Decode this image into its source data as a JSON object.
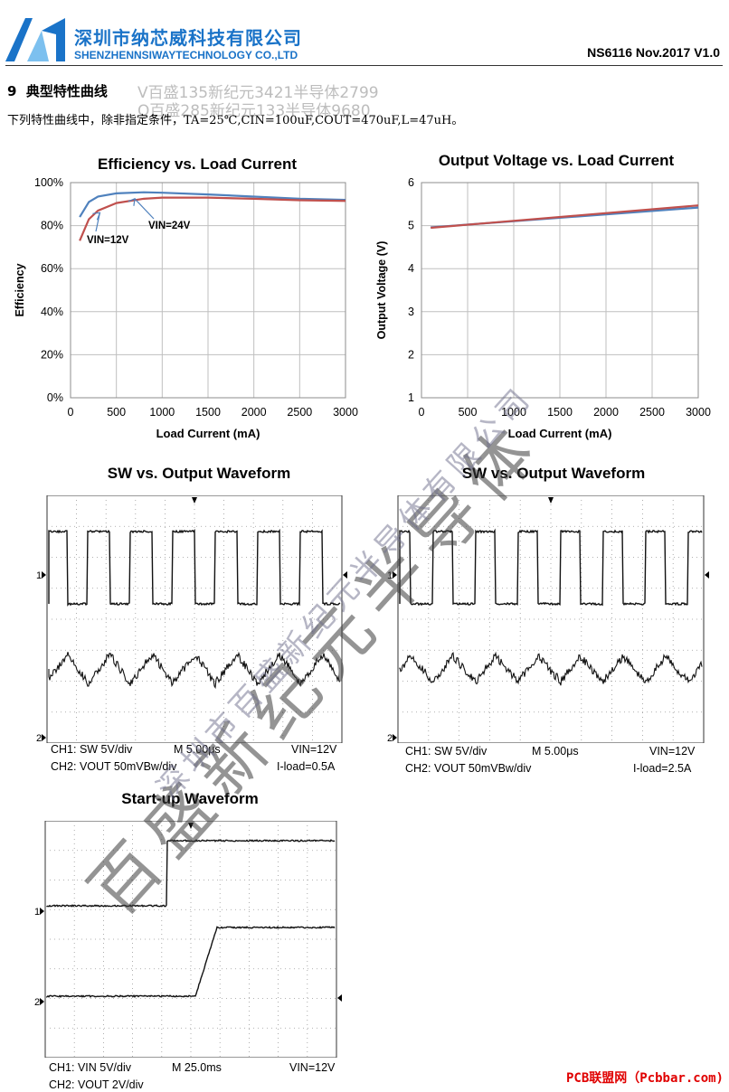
{
  "header": {
    "company_cn": "深圳市纳芯威科技有限公司",
    "company_en": "SHENZHENNSIWAYTECHNOLOGY CO.,LTD",
    "doc_info": "NS6116 Nov.2017 V1.0"
  },
  "section": {
    "number": "9",
    "title": "典型特性曲线",
    "intro": "下列特性曲线中，除非指定条件，TA=25℃,CIN=100uF,COUT=470uF,L=47uH。"
  },
  "watermark": {
    "line1": "V百盛135新纪元3421半导体2799",
    "line2": "Q百盛285新纪元133半导体9680",
    "diagonal_big": "百盛新纪元半导体",
    "diagonal_small": "深圳市百盛新纪元半导体有限公司"
  },
  "chart_data": [
    {
      "type": "line",
      "title": "Efficiency vs. Load Current",
      "xlabel": "Load Current (mA)",
      "ylabel": "Efficiency",
      "xlim": [
        0,
        3000
      ],
      "ylim": [
        0,
        100
      ],
      "xticks": [
        "0",
        "500",
        "1000",
        "1500",
        "2000",
        "2500",
        "3000"
      ],
      "yticks": [
        "0%",
        "20%",
        "40%",
        "60%",
        "80%",
        "100%"
      ],
      "grid": true,
      "series": [
        {
          "name": "VIN=12V",
          "color": "#4f81bd",
          "x": [
            100,
            200,
            300,
            500,
            800,
            1000,
            1500,
            2000,
            2500,
            3000
          ],
          "y": [
            84,
            91,
            93.5,
            95,
            95.5,
            95.3,
            94.5,
            93.5,
            92.5,
            92
          ]
        },
        {
          "name": "VIN=24V",
          "color": "#c0504d",
          "x": [
            100,
            200,
            300,
            500,
            800,
            1000,
            1500,
            2000,
            2500,
            3000
          ],
          "y": [
            73,
            83,
            87,
            90.5,
            92.5,
            93,
            93,
            92.5,
            91.8,
            91.5
          ]
        }
      ],
      "annotations": [
        "VIN=12V",
        "VIN=24V"
      ]
    },
    {
      "type": "line",
      "title": "Output Voltage vs. Load Current",
      "xlabel": "Load Current (mA)",
      "ylabel": "Output Voltage (V)",
      "xlim": [
        0,
        3000
      ],
      "ylim": [
        1,
        6
      ],
      "xticks": [
        "0",
        "500",
        "1000",
        "1500",
        "2000",
        "2500",
        "3000"
      ],
      "yticks": [
        "1",
        "2",
        "3",
        "4",
        "5",
        "6"
      ],
      "grid": true,
      "series": [
        {
          "name": "VIN=12V",
          "color": "#4f81bd",
          "x": [
            100,
            3000
          ],
          "y": [
            4.96,
            5.42
          ]
        },
        {
          "name": "VIN=24V",
          "color": "#c0504d",
          "x": [
            100,
            3000
          ],
          "y": [
            4.95,
            5.47
          ]
        }
      ]
    }
  ],
  "scopes": [
    {
      "title": "SW vs. Output Waveform",
      "caption_left_1": "CH1: SW  5V/div",
      "caption_mid_1": "M 5.00μs",
      "caption_right_1": "VIN=12V",
      "caption_left_2": "CH2: VOUT  50mVBw/div",
      "caption_right_2": "I-load=0.5A",
      "ch1_marker": "1",
      "ch2_marker": "2"
    },
    {
      "title": "SW vs. Output Waveform",
      "caption_left_1": "CH1: SW  5V/div",
      "caption_mid_1": "M 5.00μs",
      "caption_right_1": "VIN=12V",
      "caption_left_2": "CH2: VOUT  50mVBw/div",
      "caption_right_2": "I-load=2.5A",
      "ch1_marker": "1",
      "ch2_marker": "2"
    },
    {
      "title": "Start-up Waveform",
      "caption_left_1": "CH1: VIN  5V/div",
      "caption_mid_1": "M 25.0ms",
      "caption_right_1": "VIN=12V",
      "caption_left_2": "CH2: VOUT  2V/div",
      "caption_right_2": "",
      "ch1_marker": "1",
      "ch2_marker": "2"
    }
  ],
  "footer": "PCB联盟网（Pcbbar.com)",
  "colors": {
    "brand": "#1a73c8",
    "series_blue": "#4f81bd",
    "series_red": "#c0504d",
    "footer": "#e00000"
  }
}
